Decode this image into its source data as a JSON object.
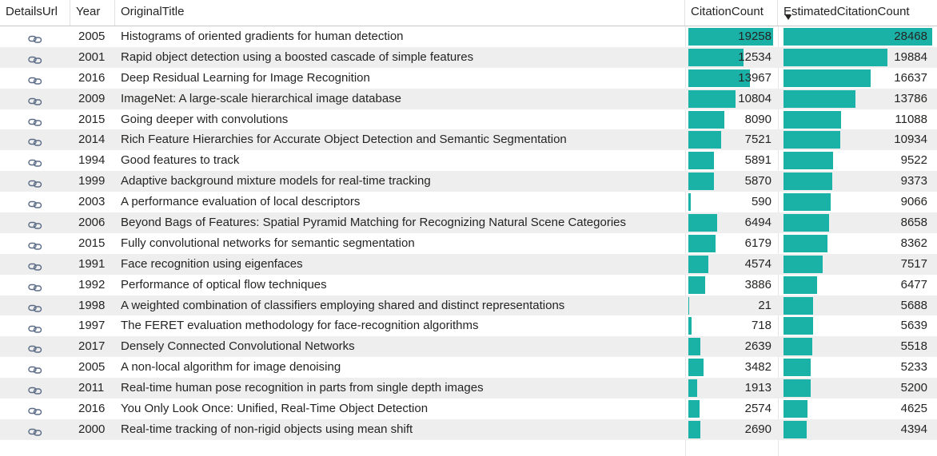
{
  "header": {
    "details_url": "DetailsUrl",
    "year": "Year",
    "original_title": "OriginalTitle",
    "citation_count": "CitationCount",
    "estimated_citation_count": "EstimatedCitationCount"
  },
  "sort": {
    "column": "EstimatedCitationCount",
    "direction": "descending"
  },
  "colors": {
    "bar": "#1ab1a6",
    "row_alt": "#eeeeee"
  },
  "icons": {
    "details_url": "link-icon"
  },
  "scale": {
    "citation_max": 19258,
    "estimated_max": 28468
  },
  "rows": [
    {
      "year": "2005",
      "title": "Histograms of oriented gradients for human detection",
      "citation": 19258,
      "estimated": 28468
    },
    {
      "year": "2001",
      "title": "Rapid object detection using a boosted cascade of simple features",
      "citation": 12534,
      "estimated": 19884
    },
    {
      "year": "2016",
      "title": "Deep Residual Learning for Image Recognition",
      "citation": 13967,
      "estimated": 16637
    },
    {
      "year": "2009",
      "title": "ImageNet: A large-scale hierarchical image database",
      "citation": 10804,
      "estimated": 13786
    },
    {
      "year": "2015",
      "title": "Going deeper with convolutions",
      "citation": 8090,
      "estimated": 11088
    },
    {
      "year": "2014",
      "title": "Rich Feature Hierarchies for Accurate Object Detection and Semantic Segmentation",
      "citation": 7521,
      "estimated": 10934
    },
    {
      "year": "1994",
      "title": "Good features to track",
      "citation": 5891,
      "estimated": 9522
    },
    {
      "year": "1999",
      "title": "Adaptive background mixture models for real-time tracking",
      "citation": 5870,
      "estimated": 9373
    },
    {
      "year": "2003",
      "title": "A performance evaluation of local descriptors",
      "citation": 590,
      "estimated": 9066
    },
    {
      "year": "2006",
      "title": "Beyond Bags of Features: Spatial Pyramid Matching for Recognizing Natural Scene Categories",
      "citation": 6494,
      "estimated": 8658
    },
    {
      "year": "2015",
      "title": "Fully convolutional networks for semantic segmentation",
      "citation": 6179,
      "estimated": 8362
    },
    {
      "year": "1991",
      "title": "Face recognition using eigenfaces",
      "citation": 4574,
      "estimated": 7517
    },
    {
      "year": "1992",
      "title": "Performance of optical flow techniques",
      "citation": 3886,
      "estimated": 6477
    },
    {
      "year": "1998",
      "title": "A weighted combination of classifiers employing shared and distinct representations",
      "citation": 21,
      "estimated": 5688
    },
    {
      "year": "1997",
      "title": "The FERET evaluation methodology for face-recognition algorithms",
      "citation": 718,
      "estimated": 5639
    },
    {
      "year": "2017",
      "title": "Densely Connected Convolutional Networks",
      "citation": 2639,
      "estimated": 5518
    },
    {
      "year": "2005",
      "title": "A non-local algorithm for image denoising",
      "citation": 3482,
      "estimated": 5233
    },
    {
      "year": "2011",
      "title": "Real-time human pose recognition in parts from single depth images",
      "citation": 1913,
      "estimated": 5200
    },
    {
      "year": "2016",
      "title": "You Only Look Once: Unified, Real-Time Object Detection",
      "citation": 2574,
      "estimated": 4625
    },
    {
      "year": "2000",
      "title": "Real-time tracking of non-rigid objects using mean shift",
      "citation": 2690,
      "estimated": 4394
    }
  ]
}
